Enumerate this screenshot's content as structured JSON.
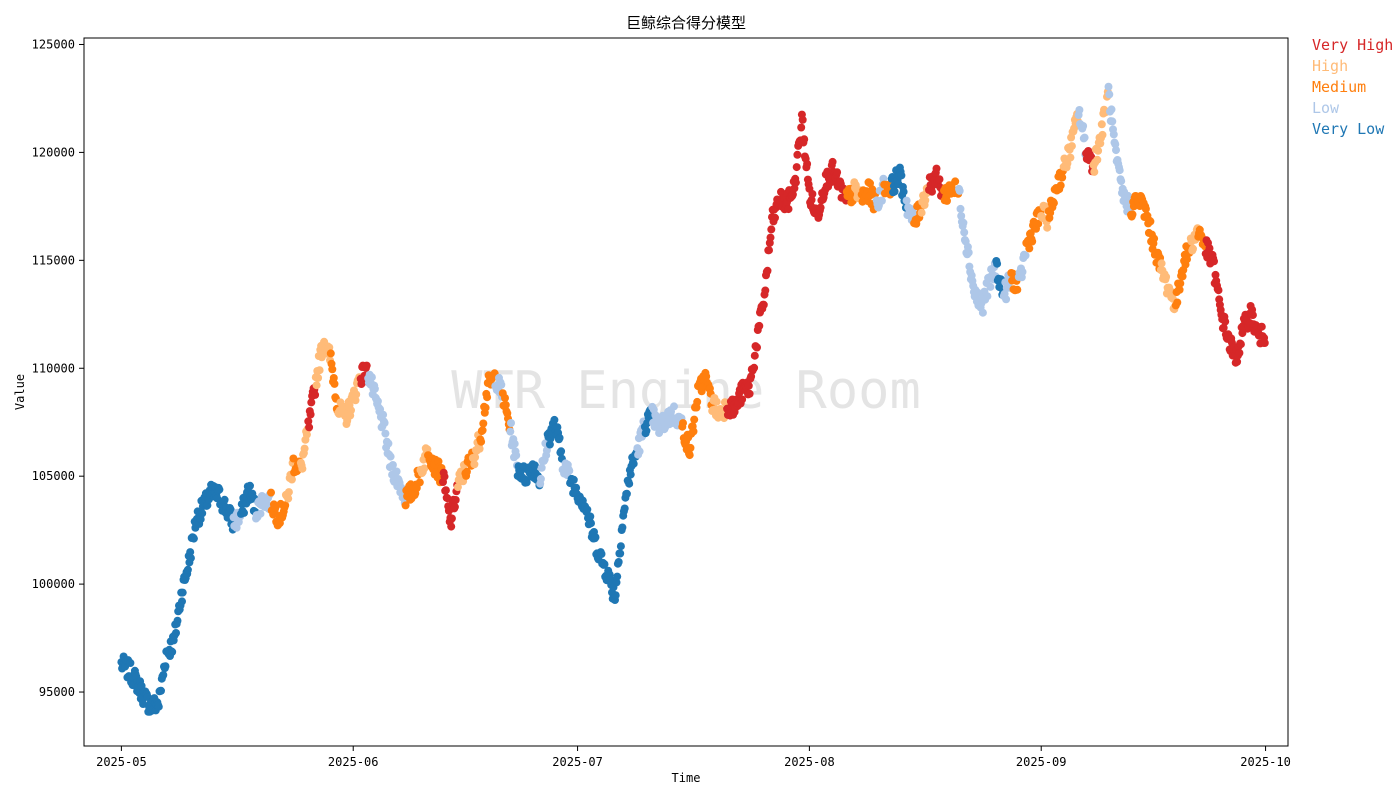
{
  "chart_data": {
    "type": "scatter",
    "title": "巨鲸综合得分模型",
    "xlabel": "Time",
    "ylabel": "Value",
    "watermark": "WTR Engine Room",
    "xlim": [
      "2025-04-26",
      "2025-10-04"
    ],
    "ylim": [
      92500,
      125300
    ],
    "x_ticks": [
      "2025-05",
      "2025-06",
      "2025-07",
      "2025-08",
      "2025-09",
      "2025-10"
    ],
    "y_ticks": [
      95000,
      100000,
      105000,
      110000,
      115000,
      120000,
      125000
    ],
    "grid": false,
    "legend_position": "outside-top-right",
    "categories": [
      {
        "name": "Very High",
        "color": "#d62728"
      },
      {
        "name": "High",
        "color": "#ffbb78"
      },
      {
        "name": "Medium",
        "color": "#ff7f0e"
      },
      {
        "name": "Low",
        "color": "#aec7e8"
      },
      {
        "name": "Very Low",
        "color": "#1f77b4"
      }
    ],
    "points": [
      [
        "2025-05-01",
        96300,
        "Very Low"
      ],
      [
        "2025-05-02",
        96000,
        "Very Low"
      ],
      [
        "2025-05-03",
        95500,
        "Very Low"
      ],
      [
        "2025-05-04",
        94800,
        "Very Low"
      ],
      [
        "2025-05-05",
        94300,
        "Very Low"
      ],
      [
        "2025-05-06",
        94500,
        "Very Low"
      ],
      [
        "2025-05-07",
        96800,
        "Very Low"
      ],
      [
        "2025-05-08",
        97300,
        "Very Low"
      ],
      [
        "2025-05-09",
        99500,
        "Very Low"
      ],
      [
        "2025-05-10",
        101000,
        "Very Low"
      ],
      [
        "2025-05-11",
        103000,
        "Very Low"
      ],
      [
        "2025-05-12",
        103600,
        "Very Low"
      ],
      [
        "2025-05-13",
        104200,
        "Very Low"
      ],
      [
        "2025-05-14",
        104100,
        "Very Low"
      ],
      [
        "2025-05-15",
        103500,
        "Very Low"
      ],
      [
        "2025-05-16",
        102800,
        "Low"
      ],
      [
        "2025-05-17",
        103200,
        "Very Low"
      ],
      [
        "2025-05-18",
        104400,
        "Very Low"
      ],
      [
        "2025-05-19",
        103400,
        "Low"
      ],
      [
        "2025-05-20",
        103900,
        "Low"
      ],
      [
        "2025-05-21",
        103800,
        "Medium"
      ],
      [
        "2025-05-22",
        103100,
        "Medium"
      ],
      [
        "2025-05-23",
        103700,
        "High"
      ],
      [
        "2025-05-24",
        105600,
        "Medium"
      ],
      [
        "2025-05-25",
        105300,
        "High"
      ],
      [
        "2025-05-26",
        107200,
        "Very High"
      ],
      [
        "2025-05-27",
        109400,
        "High"
      ],
      [
        "2025-05-28",
        111300,
        "High"
      ],
      [
        "2025-05-29",
        110400,
        "Medium"
      ],
      [
        "2025-05-30",
        108100,
        "High"
      ],
      [
        "2025-05-31",
        107700,
        "High"
      ],
      [
        "2025-06-01",
        108600,
        "High"
      ],
      [
        "2025-06-02",
        109700,
        "Very High"
      ],
      [
        "2025-06-03",
        109800,
        "Low"
      ],
      [
        "2025-06-04",
        108500,
        "Low"
      ],
      [
        "2025-06-05",
        107400,
        "Low"
      ],
      [
        "2025-06-06",
        105500,
        "Low"
      ],
      [
        "2025-06-07",
        104800,
        "Low"
      ],
      [
        "2025-06-08",
        104000,
        "Medium"
      ],
      [
        "2025-06-09",
        104300,
        "Medium"
      ],
      [
        "2025-06-10",
        105200,
        "High"
      ],
      [
        "2025-06-11",
        106300,
        "Medium"
      ],
      [
        "2025-06-12",
        105400,
        "Medium"
      ],
      [
        "2025-06-13",
        105000,
        "Very High"
      ],
      [
        "2025-06-14",
        102800,
        "Very High"
      ],
      [
        "2025-06-15",
        104600,
        "High"
      ],
      [
        "2025-06-16",
        105300,
        "Medium"
      ],
      [
        "2025-06-17",
        105800,
        "High"
      ],
      [
        "2025-06-18",
        106800,
        "Medium"
      ],
      [
        "2025-06-19",
        109200,
        "Medium"
      ],
      [
        "2025-06-20",
        109600,
        "Low"
      ],
      [
        "2025-06-21",
        108700,
        "Medium"
      ],
      [
        "2025-06-22",
        107200,
        "Low"
      ],
      [
        "2025-06-23",
        105400,
        "Very Low"
      ],
      [
        "2025-06-24",
        105000,
        "Very Low"
      ],
      [
        "2025-06-25",
        105500,
        "Very Low"
      ],
      [
        "2025-06-26",
        104800,
        "Low"
      ],
      [
        "2025-06-27",
        106700,
        "Very Low"
      ],
      [
        "2025-06-28",
        107400,
        "Very Low"
      ],
      [
        "2025-06-29",
        105700,
        "Low"
      ],
      [
        "2025-06-30",
        104900,
        "Very Low"
      ],
      [
        "2025-07-01",
        104300,
        "Very Low"
      ],
      [
        "2025-07-02",
        103700,
        "Very Low"
      ],
      [
        "2025-07-03",
        102300,
        "Very Low"
      ],
      [
        "2025-07-04",
        101300,
        "Very Low"
      ],
      [
        "2025-07-05",
        100500,
        "Very Low"
      ],
      [
        "2025-07-06",
        99400,
        "Very Low"
      ],
      [
        "2025-07-07",
        102900,
        "Very Low"
      ],
      [
        "2025-07-08",
        105200,
        "Very Low"
      ],
      [
        "2025-07-09",
        106200,
        "Low"
      ],
      [
        "2025-07-10",
        107400,
        "Very Low"
      ],
      [
        "2025-07-11",
        107800,
        "Low"
      ],
      [
        "2025-07-12",
        107200,
        "Low"
      ],
      [
        "2025-07-13",
        107700,
        "Low"
      ],
      [
        "2025-07-14",
        107900,
        "Low"
      ],
      [
        "2025-07-15",
        107300,
        "Medium"
      ],
      [
        "2025-07-16",
        106200,
        "Medium"
      ],
      [
        "2025-07-17",
        108700,
        "Medium"
      ],
      [
        "2025-07-18",
        109600,
        "Medium"
      ],
      [
        "2025-07-19",
        108400,
        "High"
      ],
      [
        "2025-07-20",
        107900,
        "High"
      ],
      [
        "2025-07-21",
        108300,
        "Very High"
      ],
      [
        "2025-07-22",
        108100,
        "Very High"
      ],
      [
        "2025-07-23",
        108900,
        "Very High"
      ],
      [
        "2025-07-24",
        109100,
        "Very High"
      ],
      [
        "2025-07-25",
        111300,
        "Very High"
      ],
      [
        "2025-07-26",
        113400,
        "Very High"
      ],
      [
        "2025-07-27",
        116800,
        "Very High"
      ],
      [
        "2025-07-28",
        117800,
        "Very High"
      ],
      [
        "2025-07-29",
        117600,
        "Very High"
      ],
      [
        "2025-07-30",
        118400,
        "Very High"
      ],
      [
        "2025-07-31",
        121500,
        "Very High"
      ],
      [
        "2025-08-01",
        118100,
        "Very High"
      ],
      [
        "2025-08-02",
        117000,
        "Very High"
      ],
      [
        "2025-08-03",
        118500,
        "Very High"
      ],
      [
        "2025-08-04",
        119200,
        "Very High"
      ],
      [
        "2025-08-05",
        118400,
        "Very High"
      ],
      [
        "2025-08-06",
        117800,
        "Medium"
      ],
      [
        "2025-08-07",
        118200,
        "High"
      ],
      [
        "2025-08-08",
        117900,
        "Medium"
      ],
      [
        "2025-08-09",
        118200,
        "Medium"
      ],
      [
        "2025-08-10",
        117500,
        "Low"
      ],
      [
        "2025-08-11",
        118500,
        "Medium"
      ],
      [
        "2025-08-12",
        118400,
        "Very Low"
      ],
      [
        "2025-08-13",
        119000,
        "Very Low"
      ],
      [
        "2025-08-14",
        117600,
        "Low"
      ],
      [
        "2025-08-15",
        116700,
        "Medium"
      ],
      [
        "2025-08-16",
        117600,
        "High"
      ],
      [
        "2025-08-17",
        118500,
        "Very High"
      ],
      [
        "2025-08-18",
        118800,
        "Very High"
      ],
      [
        "2025-08-19",
        118000,
        "Medium"
      ],
      [
        "2025-08-20",
        118400,
        "Medium"
      ],
      [
        "2025-08-21",
        118100,
        "Low"
      ],
      [
        "2025-08-22",
        115800,
        "Low"
      ],
      [
        "2025-08-23",
        113600,
        "Low"
      ],
      [
        "2025-08-24",
        112800,
        "Low"
      ],
      [
        "2025-08-25",
        113900,
        "Low"
      ],
      [
        "2025-08-26",
        114700,
        "Very Low"
      ],
      [
        "2025-08-27",
        113400,
        "Low"
      ],
      [
        "2025-08-28",
        114200,
        "Medium"
      ],
      [
        "2025-08-29",
        113800,
        "Low"
      ],
      [
        "2025-08-30",
        115600,
        "Medium"
      ],
      [
        "2025-08-31",
        116500,
        "Medium"
      ],
      [
        "2025-09-01",
        117200,
        "High"
      ],
      [
        "2025-09-02",
        116900,
        "Medium"
      ],
      [
        "2025-09-03",
        118400,
        "Medium"
      ],
      [
        "2025-09-04",
        119200,
        "High"
      ],
      [
        "2025-09-05",
        120300,
        "High"
      ],
      [
        "2025-09-06",
        121900,
        "Low"
      ],
      [
        "2025-09-07",
        120100,
        "Very High"
      ],
      [
        "2025-09-08",
        119400,
        "High"
      ],
      [
        "2025-09-09",
        120800,
        "High"
      ],
      [
        "2025-09-10",
        122800,
        "Low"
      ],
      [
        "2025-09-11",
        119700,
        "Low"
      ],
      [
        "2025-09-12",
        117900,
        "Low"
      ],
      [
        "2025-09-13",
        117400,
        "Medium"
      ],
      [
        "2025-09-14",
        117900,
        "Medium"
      ],
      [
        "2025-09-15",
        117200,
        "Medium"
      ],
      [
        "2025-09-16",
        115800,
        "Medium"
      ],
      [
        "2025-09-17",
        114600,
        "High"
      ],
      [
        "2025-09-18",
        113700,
        "High"
      ],
      [
        "2025-09-19",
        112900,
        "Medium"
      ],
      [
        "2025-09-20",
        114900,
        "Medium"
      ],
      [
        "2025-09-21",
        115700,
        "High"
      ],
      [
        "2025-09-22",
        116400,
        "Medium"
      ],
      [
        "2025-09-23",
        115600,
        "Very High"
      ],
      [
        "2025-09-24",
        114800,
        "Very High"
      ],
      [
        "2025-09-25",
        112600,
        "Very High"
      ],
      [
        "2025-09-26",
        111400,
        "Very High"
      ],
      [
        "2025-09-27",
        110400,
        "Very High"
      ],
      [
        "2025-09-28",
        111800,
        "Very High"
      ],
      [
        "2025-09-29",
        112600,
        "Very High"
      ],
      [
        "2025-09-30",
        111500,
        "Very High"
      ]
    ]
  }
}
